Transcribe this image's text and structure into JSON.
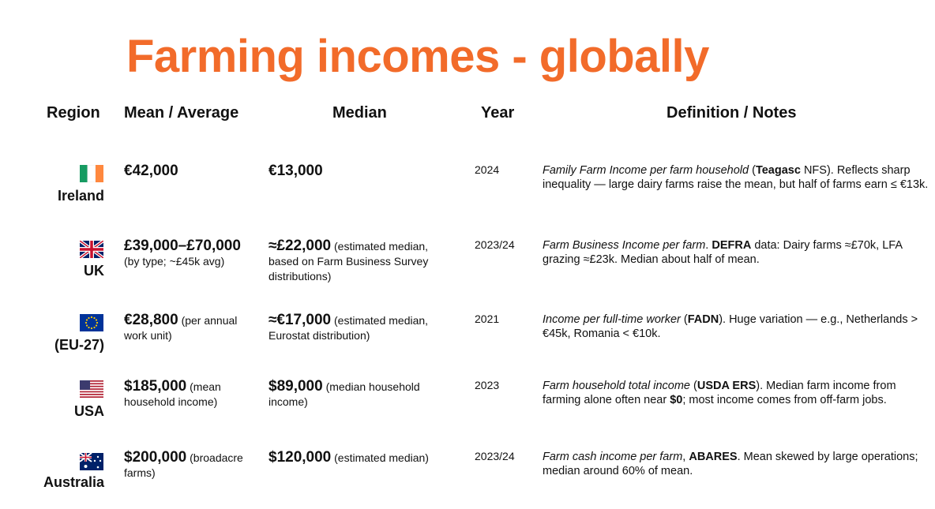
{
  "header": {
    "title": "Farming incomes - globally"
  },
  "table": {
    "columns": [
      "Region",
      "Mean / Average",
      "Median",
      "Year",
      "Definition / Notes"
    ],
    "rows": [
      {
        "region": "Ireland",
        "mean": [
          {
            "text": "€42,000",
            "style": "big"
          }
        ],
        "median": [
          {
            "text": "€13,000",
            "style": "big"
          }
        ],
        "year": "2024",
        "notes": [
          {
            "text": "Family Farm Income per farm household",
            "style": "italic"
          },
          {
            "text": " (",
            "style": "plain"
          },
          {
            "text": "Teagasc",
            "style": "bold"
          },
          {
            "text": " NFS). Reflects sharp inequality — large dairy farms raise the mean, but half of farms earn ≤ €13k.",
            "style": "plain"
          }
        ]
      },
      {
        "region": "UK",
        "mean": [
          {
            "text": "£39,000–£70,000",
            "style": "big"
          },
          {
            "text": " (by type; ~£45k avg)",
            "style": "small"
          }
        ],
        "median": [
          {
            "text": "≈£22,000",
            "style": "big"
          },
          {
            "text": " (estimated median, based on Farm Business Survey distributions)",
            "style": "small"
          }
        ],
        "year": "2023/24",
        "notes": [
          {
            "text": "Farm Business Income per farm",
            "style": "italic"
          },
          {
            "text": ". ",
            "style": "plain"
          },
          {
            "text": "DEFRA",
            "style": "bold"
          },
          {
            "text": " data: Dairy farms ≈£70k, LFA grazing ≈£23k. Median about half of mean.",
            "style": "plain"
          }
        ]
      },
      {
        "region": "(EU-27)",
        "mean": [
          {
            "text": "€28,800",
            "style": "big"
          },
          {
            "text": " (per annual work unit)",
            "style": "small"
          }
        ],
        "median": [
          {
            "text": "≈€17,000",
            "style": "big"
          },
          {
            "text": " (estimated median, Eurostat distribution)",
            "style": "small"
          }
        ],
        "year": "2021",
        "notes": [
          {
            "text": "Income per full-time worker",
            "style": "italic"
          },
          {
            "text": " (",
            "style": "plain"
          },
          {
            "text": "FADN",
            "style": "bold"
          },
          {
            "text": "). Huge variation — e.g., Netherlands > €45k, Romania < €10k.",
            "style": "plain"
          }
        ]
      },
      {
        "region": "USA",
        "mean": [
          {
            "text": "$185,000",
            "style": "big"
          },
          {
            "text": " (mean household income)",
            "style": "small"
          }
        ],
        "median": [
          {
            "text": "$89,000",
            "style": "big"
          },
          {
            "text": " (median household income)",
            "style": "small"
          }
        ],
        "year": "2023",
        "notes": [
          {
            "text": "Farm household total income",
            "style": "italic"
          },
          {
            "text": " (",
            "style": "plain"
          },
          {
            "text": "USDA ERS",
            "style": "bold"
          },
          {
            "text": "). Median farm income from farming alone often near ",
            "style": "plain"
          },
          {
            "text": "$0",
            "style": "bold"
          },
          {
            "text": "; most income comes from off-farm jobs.",
            "style": "plain"
          }
        ]
      },
      {
        "region": "Australia",
        "mean": [
          {
            "text": "$200,000",
            "style": "big"
          },
          {
            "text": " (broadacre farms)",
            "style": "small"
          }
        ],
        "median": [
          {
            "text": "$120,000",
            "style": "big"
          },
          {
            "text": " (estimated median)",
            "style": "small"
          }
        ],
        "year": "2023/24",
        "notes": [
          {
            "text": "Farm cash income per farm",
            "style": "italic"
          },
          {
            "text": ", ",
            "style": "plain"
          },
          {
            "text": "ABARES",
            "style": "bold"
          },
          {
            "text": ". Mean skewed by large operations; median around 60% of mean.",
            "style": "plain"
          }
        ]
      }
    ]
  }
}
